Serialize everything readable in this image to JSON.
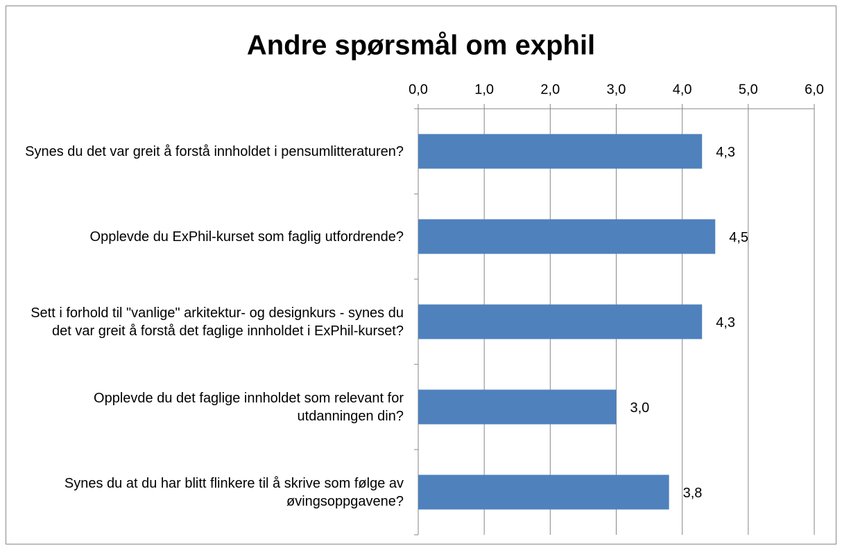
{
  "chart_data": {
    "type": "barh",
    "title": "Andre spørsmål om exphil",
    "categories": [
      "Synes du det var greit å forstå innholdet i pensumlitteraturen?",
      "Opplevde du ExPhil-kurset som faglig utfordrende?",
      "Sett i forhold til \"vanlige\" arkitektur- og designkurs - synes du det var greit å forstå det faglige innholdet i ExPhil-kurset?",
      "Opplevde du det faglige innholdet som relevant for utdanningen din?",
      "Synes du at du har blitt flinkere til å skrive som følge av øvingsoppgavene?"
    ],
    "values": [
      4.3,
      4.5,
      4.3,
      3.0,
      3.8
    ],
    "value_labels": [
      "4,3",
      "4,5",
      "4,3",
      "3,0",
      "3,8"
    ],
    "color": "#4f81bd",
    "xlim": [
      0,
      6
    ],
    "xticks": [
      {
        "value": 0,
        "label": "0,0"
      },
      {
        "value": 1,
        "label": "1,0"
      },
      {
        "value": 2,
        "label": "2,0"
      },
      {
        "value": 3,
        "label": "3,0"
      },
      {
        "value": 4,
        "label": "4,0"
      },
      {
        "value": 5,
        "label": "5,0"
      },
      {
        "value": 6,
        "label": "6,0"
      }
    ],
    "grid": true
  }
}
